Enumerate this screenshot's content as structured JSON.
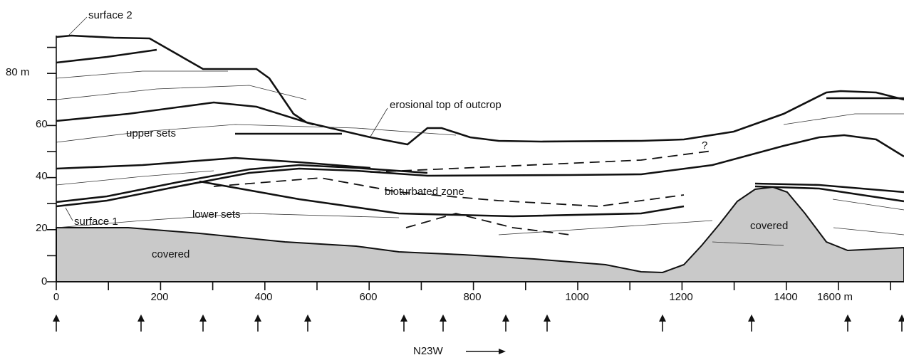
{
  "axes": {
    "y_ticks": [
      "80 m",
      "60",
      "40",
      "20",
      "0"
    ],
    "x_ticks": [
      "0",
      "200",
      "400",
      "600",
      "800",
      "1000",
      "1200",
      "1400",
      "1600 m"
    ],
    "direction": "N23W"
  },
  "labels": {
    "surface_2": "surface 2",
    "surface_1": "surface 1",
    "erosional_top": "erosional top of outcrop",
    "upper_sets": "upper sets",
    "lower_sets": "lower sets",
    "bioturbated_zone": "bioturbated zone",
    "covered_left": "covered",
    "covered_right": "covered",
    "question": "?"
  }
}
